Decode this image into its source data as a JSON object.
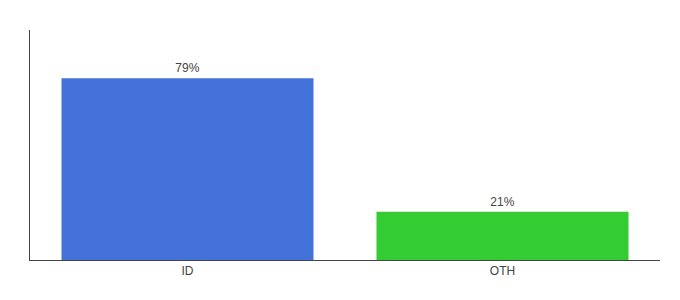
{
  "chart_data": {
    "type": "bar",
    "categories": [
      "ID",
      "OTH"
    ],
    "values": [
      79,
      21
    ],
    "value_labels": [
      "79%",
      "21%"
    ],
    "data_labels": true,
    "colors": [
      "#4472db",
      "#33cc33"
    ],
    "ylim": [
      0,
      100
    ],
    "tick_labels": "x",
    "grid": false
  }
}
